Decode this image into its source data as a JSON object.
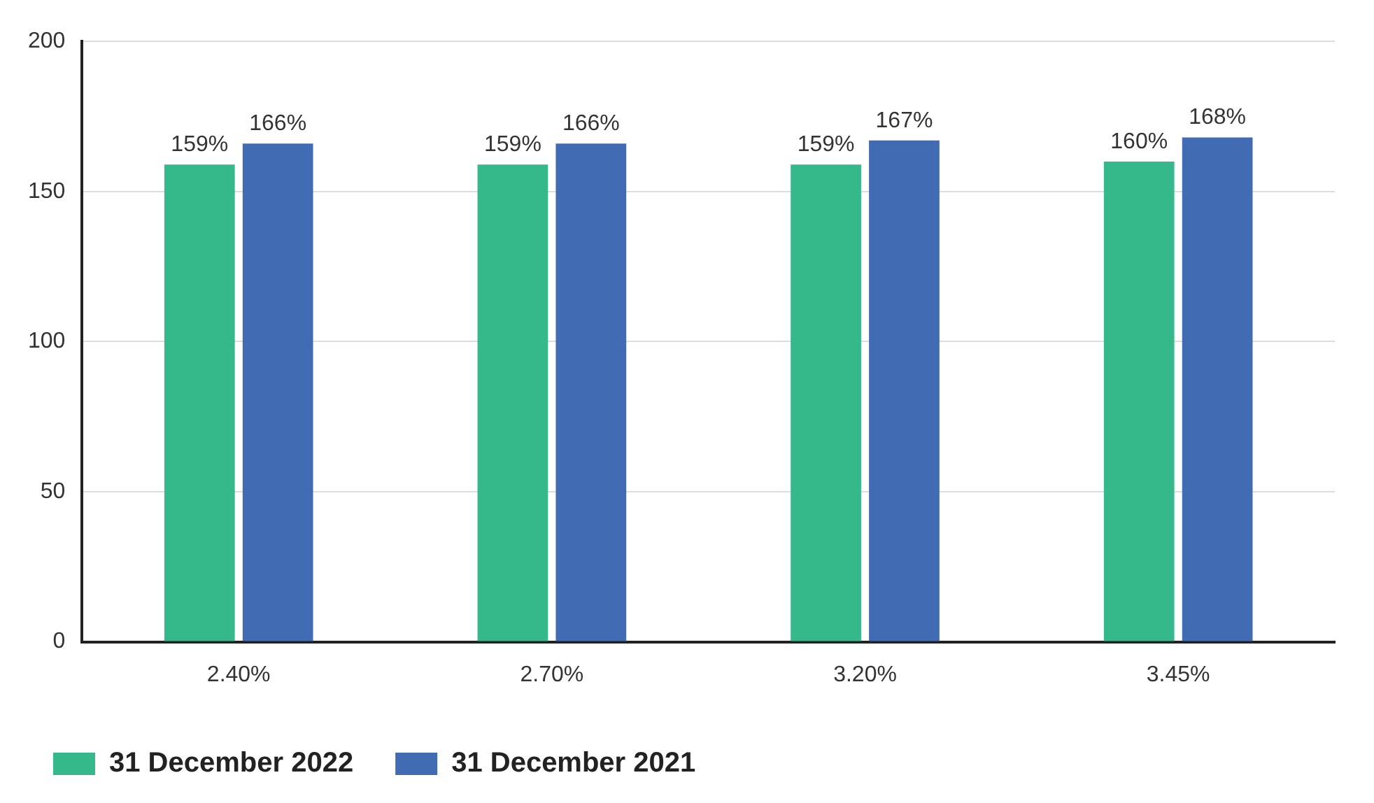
{
  "chart_data": {
    "type": "bar",
    "categories": [
      "2.40%",
      "2.70%",
      "3.20%",
      "3.45%"
    ],
    "series": [
      {
        "name": "31 December 2022",
        "color": "#35b98b",
        "values": [
          159,
          159,
          159,
          160
        ],
        "value_labels": [
          "159%",
          "159%",
          "159%",
          "160%"
        ]
      },
      {
        "name": "31 December 2021",
        "color": "#416bb3",
        "values": [
          166,
          166,
          167,
          168
        ],
        "value_labels": [
          "166%",
          "166%",
          "167%",
          "168%"
        ]
      }
    ],
    "ylim": [
      0,
      200
    ],
    "yticks": [
      0,
      50,
      100,
      150,
      200
    ],
    "grid": "y",
    "legend": "bottom left"
  }
}
